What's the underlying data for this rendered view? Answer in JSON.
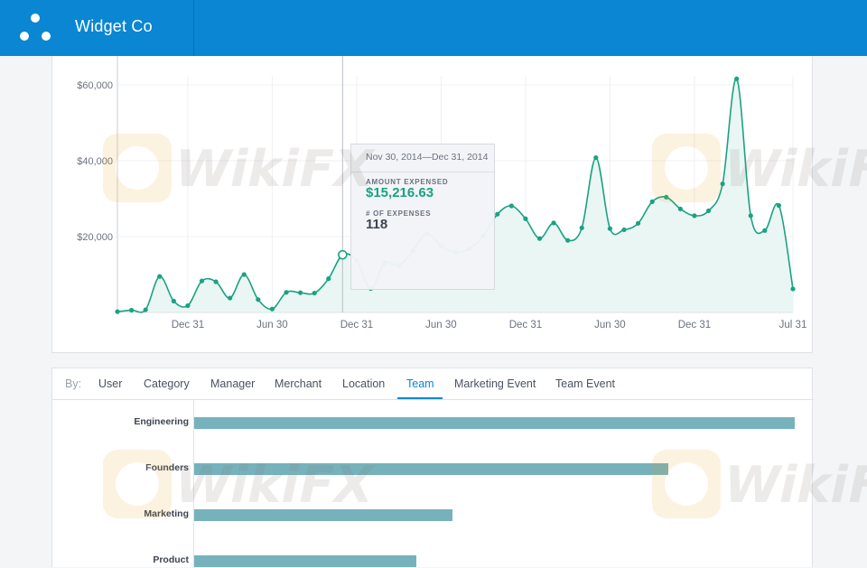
{
  "header": {
    "brand": "Widget Co"
  },
  "chart_data": {
    "type": "area",
    "y_ticks": [
      "$60,000",
      "$40,000",
      "$20,000"
    ],
    "y_tick_values": [
      60000,
      40000,
      20000
    ],
    "ylim": [
      0,
      60000
    ],
    "x_ticks": [
      "Dec 31",
      "Jun 30",
      "Dec 31",
      "Jun 30",
      "Dec 31",
      "Jun 30",
      "Dec 31",
      "Jul 31"
    ],
    "x_tick_index": [
      5,
      11,
      17,
      23,
      29,
      35,
      41,
      48
    ],
    "values": [
      200,
      600,
      700,
      9500,
      3000,
      1800,
      8300,
      8100,
      3800,
      10000,
      3400,
      900,
      5300,
      5200,
      5100,
      8900,
      15200,
      13700,
      6300,
      13100,
      12300,
      16300,
      20800,
      17500,
      15900,
      16800,
      20200,
      25900,
      28100,
      24700,
      19500,
      23600,
      19000,
      22300,
      40800,
      22100,
      21800,
      23500,
      29200,
      30400,
      27300,
      25500,
      26800,
      33900,
      61600,
      25500,
      21600,
      28200,
      6200
    ],
    "highlight_index": 16,
    "colors": {
      "line": "#1aa283",
      "fill": "#eaf6f3",
      "grid": "#eef0f3",
      "axis": "#c9cdd3",
      "tick_text": "#6b7280"
    }
  },
  "tooltip": {
    "range": "Nov 30, 2014—Dec 31, 2014",
    "amount_label": "AMOUNT EXPENSED",
    "amount": "$15,216.63",
    "count_label": "# OF EXPENSES",
    "count": "118"
  },
  "breakdown": {
    "by_label": "By:",
    "tabs": [
      {
        "label": "User"
      },
      {
        "label": "Category"
      },
      {
        "label": "Manager"
      },
      {
        "label": "Merchant"
      },
      {
        "label": "Location"
      },
      {
        "label": "Team",
        "active": true
      },
      {
        "label": "Marketing Event"
      },
      {
        "label": "Team Event"
      }
    ],
    "bar_chart": {
      "type": "bar",
      "categories": [
        "Engineering",
        "Founders",
        "Marketing",
        "Product"
      ],
      "values": [
        100,
        79,
        43,
        37
      ]
    }
  }
}
